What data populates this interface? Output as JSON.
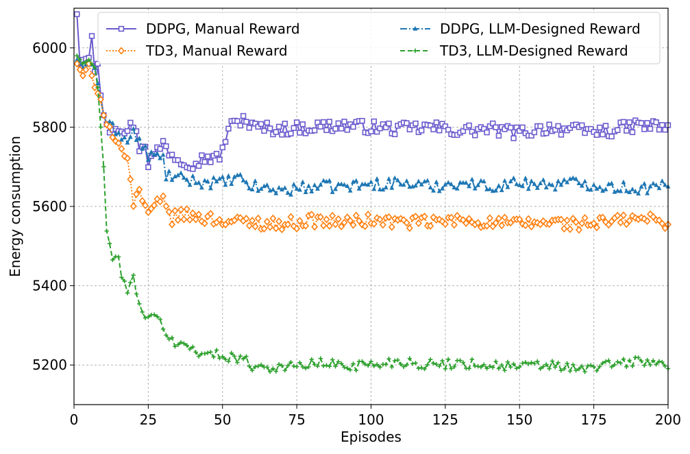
{
  "chart_data": {
    "type": "line",
    "title": "",
    "xlabel": "Episodes",
    "ylabel": "Energy consumption",
    "xlim": [
      0,
      200
    ],
    "ylim": [
      5100,
      6100
    ],
    "xticks": [
      0,
      25,
      50,
      75,
      100,
      125,
      150,
      175,
      200
    ],
    "yticks": [
      5200,
      5400,
      5600,
      5800,
      6000
    ],
    "grid": true,
    "legend_position": "top",
    "legend_columns": 2,
    "series": [
      {
        "name": "DDPG, Manual Reward",
        "color": "#6a5acd",
        "linestyle": "solid",
        "marker": "square",
        "anchors": [
          [
            1,
            6085
          ],
          [
            2,
            5960
          ],
          [
            3,
            5970
          ],
          [
            5,
            5975
          ],
          [
            6,
            6030
          ],
          [
            7,
            5940
          ],
          [
            8,
            5960
          ],
          [
            9,
            5880
          ],
          [
            10,
            5830
          ],
          [
            12,
            5800
          ],
          [
            15,
            5805
          ],
          [
            18,
            5790
          ],
          [
            20,
            5810
          ],
          [
            22,
            5750
          ],
          [
            24,
            5760
          ],
          [
            25,
            5710
          ],
          [
            28,
            5740
          ],
          [
            30,
            5760
          ],
          [
            32,
            5740
          ],
          [
            35,
            5720
          ],
          [
            40,
            5710
          ],
          [
            45,
            5725
          ],
          [
            48,
            5720
          ],
          [
            50,
            5740
          ],
          [
            52,
            5800
          ],
          [
            55,
            5810
          ],
          [
            57,
            5825
          ],
          [
            60,
            5800
          ],
          [
            70,
            5795
          ],
          [
            80,
            5800
          ],
          [
            90,
            5805
          ],
          [
            100,
            5800
          ],
          [
            110,
            5795
          ],
          [
            120,
            5800
          ],
          [
            130,
            5790
          ],
          [
            140,
            5795
          ],
          [
            150,
            5785
          ],
          [
            160,
            5800
          ],
          [
            170,
            5790
          ],
          [
            180,
            5790
          ],
          [
            190,
            5805
          ],
          [
            200,
            5800
          ]
        ],
        "noise": 16
      },
      {
        "name": "DDPG, LLM-Designed Reward",
        "color": "#1f77b4",
        "linestyle": "dashdot",
        "marker": "triangle",
        "anchors": [
          [
            1,
            5970
          ],
          [
            3,
            5950
          ],
          [
            5,
            5965
          ],
          [
            7,
            5950
          ],
          [
            9,
            5870
          ],
          [
            10,
            5830
          ],
          [
            12,
            5800
          ],
          [
            15,
            5790
          ],
          [
            18,
            5760
          ],
          [
            20,
            5790
          ],
          [
            22,
            5760
          ],
          [
            25,
            5730
          ],
          [
            28,
            5725
          ],
          [
            30,
            5720
          ],
          [
            31,
            5680
          ],
          [
            35,
            5670
          ],
          [
            40,
            5665
          ],
          [
            45,
            5660
          ],
          [
            50,
            5660
          ],
          [
            55,
            5670
          ],
          [
            60,
            5650
          ],
          [
            70,
            5640
          ],
          [
            80,
            5650
          ],
          [
            90,
            5650
          ],
          [
            100,
            5655
          ],
          [
            110,
            5660
          ],
          [
            120,
            5650
          ],
          [
            130,
            5660
          ],
          [
            140,
            5650
          ],
          [
            150,
            5660
          ],
          [
            160,
            5655
          ],
          [
            170,
            5660
          ],
          [
            180,
            5650
          ],
          [
            190,
            5645
          ],
          [
            200,
            5650
          ]
        ],
        "noise": 15
      },
      {
        "name": "TD3, Manual Reward",
        "color": "#ff7f0e",
        "linestyle": "dotted",
        "marker": "diamond",
        "anchors": [
          [
            1,
            5960
          ],
          [
            3,
            5930
          ],
          [
            5,
            5960
          ],
          [
            7,
            5900
          ],
          [
            9,
            5870
          ],
          [
            10,
            5830
          ],
          [
            12,
            5790
          ],
          [
            14,
            5750
          ],
          [
            16,
            5760
          ],
          [
            18,
            5720
          ],
          [
            19,
            5680
          ],
          [
            20,
            5610
          ],
          [
            22,
            5640
          ],
          [
            24,
            5600
          ],
          [
            25,
            5570
          ],
          [
            28,
            5610
          ],
          [
            30,
            5610
          ],
          [
            33,
            5570
          ],
          [
            36,
            5580
          ],
          [
            40,
            5575
          ],
          [
            45,
            5570
          ],
          [
            50,
            5565
          ],
          [
            55,
            5560
          ],
          [
            60,
            5560
          ],
          [
            70,
            5555
          ],
          [
            80,
            5565
          ],
          [
            90,
            5560
          ],
          [
            100,
            5565
          ],
          [
            110,
            5560
          ],
          [
            120,
            5560
          ],
          [
            130,
            5565
          ],
          [
            140,
            5560
          ],
          [
            150,
            5555
          ],
          [
            160,
            5560
          ],
          [
            170,
            5555
          ],
          [
            180,
            5560
          ],
          [
            190,
            5570
          ],
          [
            200,
            5560
          ]
        ],
        "noise": 16
      },
      {
        "name": "TD3, LLM-Designed Reward",
        "color": "#2ca02c",
        "linestyle": "dashed",
        "marker": "plus",
        "anchors": [
          [
            1,
            5980
          ],
          [
            3,
            5960
          ],
          [
            5,
            5970
          ],
          [
            7,
            5950
          ],
          [
            8,
            5900
          ],
          [
            9,
            5800
          ],
          [
            10,
            5700
          ],
          [
            11,
            5540
          ],
          [
            12,
            5500
          ],
          [
            13,
            5470
          ],
          [
            15,
            5460
          ],
          [
            17,
            5410
          ],
          [
            18,
            5380
          ],
          [
            20,
            5420
          ],
          [
            22,
            5360
          ],
          [
            23,
            5340
          ],
          [
            25,
            5310
          ],
          [
            27,
            5320
          ],
          [
            29,
            5310
          ],
          [
            30,
            5300
          ],
          [
            32,
            5270
          ],
          [
            34,
            5250
          ],
          [
            38,
            5250
          ],
          [
            42,
            5235
          ],
          [
            45,
            5225
          ],
          [
            50,
            5225
          ],
          [
            55,
            5220
          ],
          [
            60,
            5200
          ],
          [
            65,
            5195
          ],
          [
            70,
            5195
          ],
          [
            75,
            5195
          ],
          [
            80,
            5205
          ],
          [
            90,
            5200
          ],
          [
            100,
            5200
          ],
          [
            110,
            5210
          ],
          [
            120,
            5200
          ],
          [
            130,
            5205
          ],
          [
            140,
            5200
          ],
          [
            150,
            5195
          ],
          [
            160,
            5200
          ],
          [
            165,
            5195
          ],
          [
            170,
            5185
          ],
          [
            175,
            5195
          ],
          [
            180,
            5200
          ],
          [
            190,
            5210
          ],
          [
            200,
            5200
          ]
        ],
        "noise": 14
      }
    ]
  }
}
